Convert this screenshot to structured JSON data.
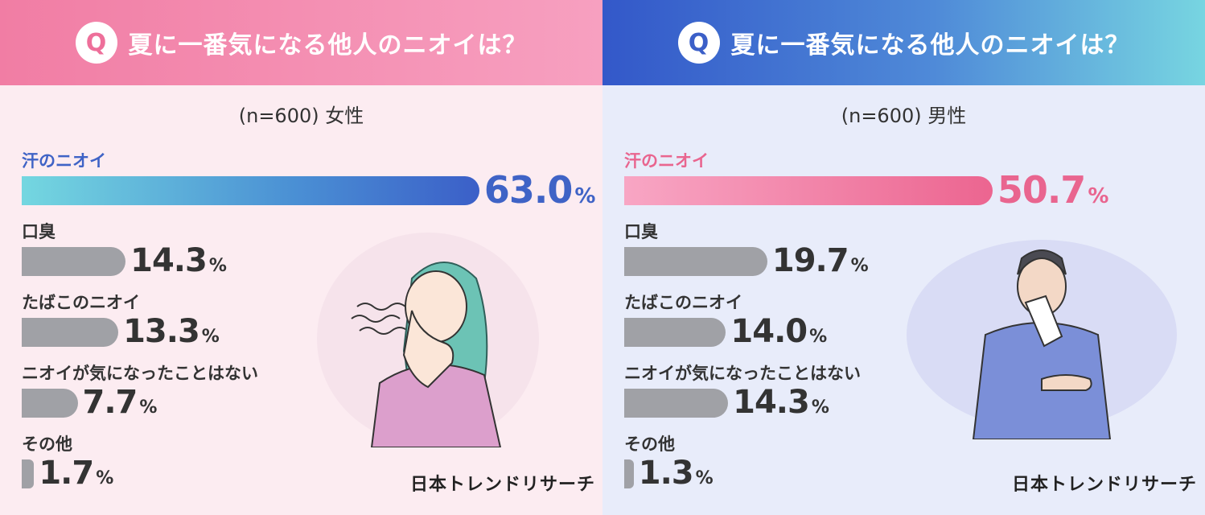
{
  "colors": {
    "female_header": "#f17da4",
    "male_header": "#3358c9",
    "female_accent": "#3f63c6",
    "male_accent": "#e9658f",
    "other_bars": "#a0a1a6"
  },
  "panels": [
    {
      "q_mark": "Q",
      "title": "夏に一番気になる他人のニオイは？",
      "sample": "(n=600) 女性",
      "logo": "日本トレンドリサーチ"
    },
    {
      "q_mark": "Q",
      "title": "夏に一番気になる他人のニオイは？",
      "sample": "(n=600) 男性",
      "logo": "日本トレンドリサーチ"
    }
  ],
  "chart_data": [
    {
      "type": "bar",
      "orientation": "horizontal",
      "title": "夏に一番気になる他人のニオイは？",
      "subtitle": "(n=600) 女性",
      "unit": "%",
      "categories": [
        "汗のニオイ",
        "口臭",
        "たばこのニオイ",
        "ニオイが気になったことはない",
        "その他"
      ],
      "values": [
        63.0,
        14.3,
        13.3,
        7.7,
        1.7
      ],
      "labels": [
        "63.0",
        "14.3",
        "13.3",
        "7.7",
        "1.7"
      ]
    },
    {
      "type": "bar",
      "orientation": "horizontal",
      "title": "夏に一番気になる他人のニオイは？",
      "subtitle": "(n=600) 男性",
      "unit": "%",
      "categories": [
        "汗のニオイ",
        "口臭",
        "たばこのニオイ",
        "ニオイが気になったことはない",
        "その他"
      ],
      "values": [
        50.7,
        19.7,
        14.0,
        14.3,
        1.3
      ],
      "labels": [
        "50.7",
        "19.7",
        "14.0",
        "14.3",
        "1.3"
      ]
    }
  ]
}
